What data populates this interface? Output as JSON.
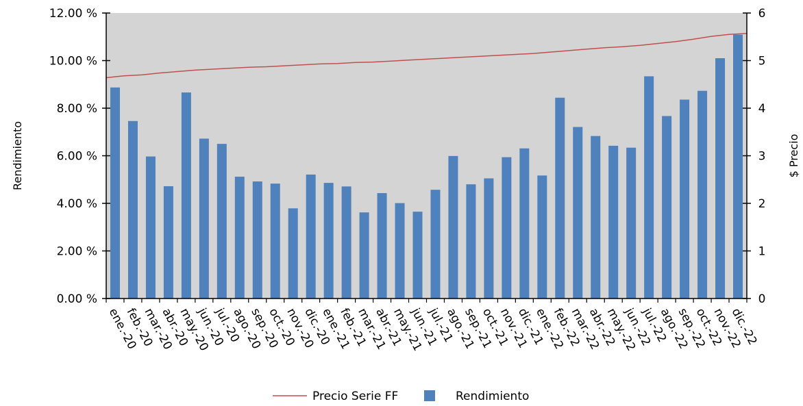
{
  "chart_data": {
    "type": "bar",
    "categories": [
      "ene.-20",
      "feb.-20",
      "mar.-20",
      "abr.-20",
      "may.-20",
      "jun.-20",
      "jul.-20",
      "ago.-20",
      "sep.-20",
      "oct.-20",
      "nov.-20",
      "dic.-20",
      "ene.-21",
      "feb.-21",
      "mar.-21",
      "abr.-21",
      "may.-21",
      "jun.-21",
      "jul.-21",
      "ago.-21",
      "sep.-21",
      "oct.-21",
      "nov.-21",
      "dic.-21",
      "ene.-22",
      "feb.-22",
      "mar.-22",
      "abr.-22",
      "may.-22",
      "jun.-22",
      "jul.-22",
      "ago.-22",
      "sep.-22",
      "oct.-22",
      "nov.-22",
      "dic.-22"
    ],
    "series": [
      {
        "name": "Rendimiento",
        "type": "bar",
        "axis": "left",
        "color": "#4f81bd",
        "values": [
          8.87,
          7.46,
          5.97,
          4.72,
          8.66,
          6.72,
          6.5,
          5.12,
          4.92,
          4.83,
          3.79,
          5.21,
          4.86,
          4.71,
          3.62,
          4.43,
          4.01,
          3.65,
          4.57,
          5.99,
          4.8,
          5.05,
          5.94,
          6.31,
          5.17,
          8.44,
          7.21,
          6.83,
          6.42,
          6.34,
          9.34,
          7.67,
          8.36,
          8.73,
          10.1,
          11.09
        ]
      },
      {
        "name": "Precio Serie FF",
        "type": "line",
        "axis": "right",
        "color": "#c0504d",
        "values": [
          4.64,
          4.68,
          4.7,
          4.74,
          4.77,
          4.8,
          4.82,
          4.84,
          4.86,
          4.87,
          4.89,
          4.91,
          4.93,
          4.94,
          4.96,
          4.97,
          4.99,
          5.01,
          5.03,
          5.05,
          5.07,
          5.09,
          5.11,
          5.13,
          5.15,
          5.18,
          5.21,
          5.24,
          5.27,
          5.29,
          5.32,
          5.36,
          5.4,
          5.45,
          5.51,
          5.55
        ]
      }
    ],
    "y_left": {
      "label": "Rendimiento",
      "min": 0,
      "max": 12,
      "ticks": [
        0,
        2,
        4,
        6,
        8,
        10,
        12
      ],
      "tick_labels": [
        "0.00 %",
        "2.00 %",
        "4.00 %",
        "6.00 %",
        "8.00 %",
        "10.00 %",
        "12.00 %"
      ]
    },
    "y_right": {
      "label": "$ Precio",
      "min": 0,
      "max": 6,
      "ticks": [
        0,
        1,
        2,
        3,
        4,
        5,
        6
      ],
      "tick_labels": [
        "0",
        "1",
        "2",
        "3",
        "4",
        "5",
        "6"
      ]
    },
    "title": "",
    "xlabel": "",
    "plot_background": "#d4d4d4",
    "grid": false,
    "legend": {
      "position": "bottom",
      "items": [
        {
          "label": "Precio Serie FF",
          "symbol": "line",
          "color": "#c0504d"
        },
        {
          "label": "Rendimiento",
          "symbol": "square",
          "color": "#4f81bd"
        }
      ]
    }
  }
}
